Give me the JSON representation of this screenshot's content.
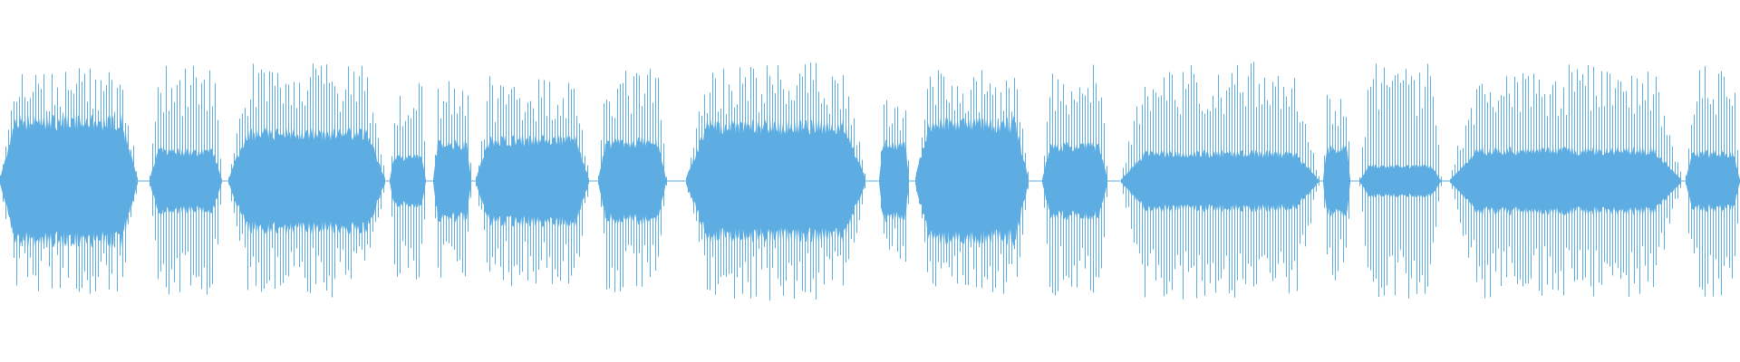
{
  "chart_data": {
    "type": "waveform",
    "title": "",
    "xlabel": "",
    "ylabel": "",
    "axes_visible": false,
    "grid": false,
    "legend": "none",
    "burst_count": 16,
    "color": "#5DADE2",
    "background": "#FFFFFF"
  }
}
